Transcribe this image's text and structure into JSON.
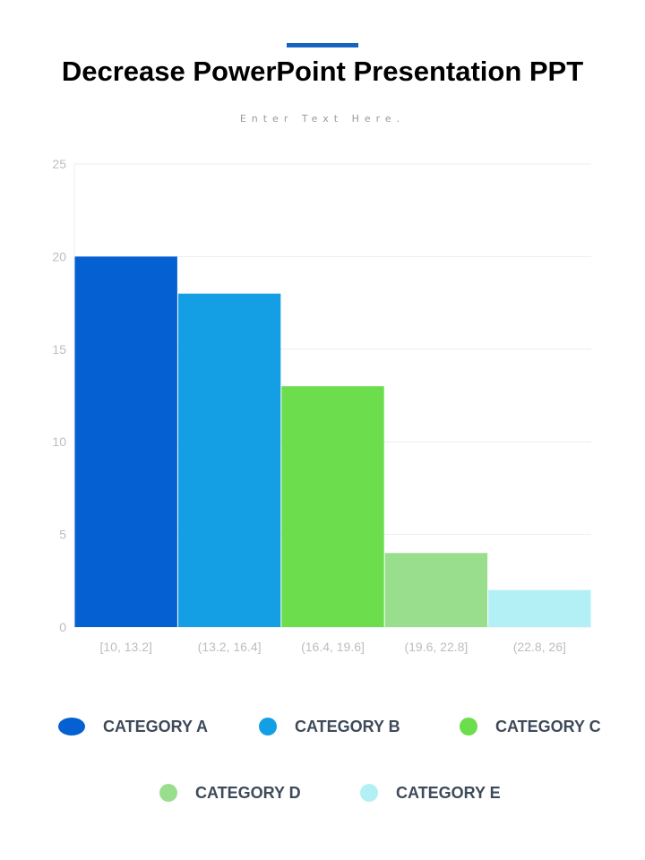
{
  "header": {
    "title": "Decrease PowerPoint Presentation PPT",
    "subtitle": "Enter Text Here."
  },
  "colors": {
    "accent": "#1565c0",
    "gridline": "#eeeeee",
    "axis_text": "#bdbdbd"
  },
  "chart_data": {
    "type": "bar",
    "categories": [
      "[10, 13.2]",
      "(13.2, 16.4]",
      "(16.4, 19.6]",
      "(19.6, 22.8]",
      "(22.8, 26]"
    ],
    "values": [
      20,
      18,
      13,
      4,
      2
    ],
    "bar_colors": [
      "#0561d1",
      "#149fe4",
      "#6cdd4c",
      "#99de8d",
      "#b3f0f5"
    ],
    "ylim": [
      0,
      25
    ],
    "yticks": [
      0,
      5,
      10,
      15,
      20,
      25
    ],
    "grid": true,
    "legend_position": "bottom"
  },
  "legend": {
    "items": [
      {
        "label": "CATEGORY A",
        "color": "#0561d1"
      },
      {
        "label": "CATEGORY B",
        "color": "#149fe4"
      },
      {
        "label": "CATEGORY C",
        "color": "#6cdd4c"
      },
      {
        "label": "CATEGORY D",
        "color": "#99de8d"
      },
      {
        "label": "CATEGORY E",
        "color": "#b3f0f5"
      }
    ]
  }
}
